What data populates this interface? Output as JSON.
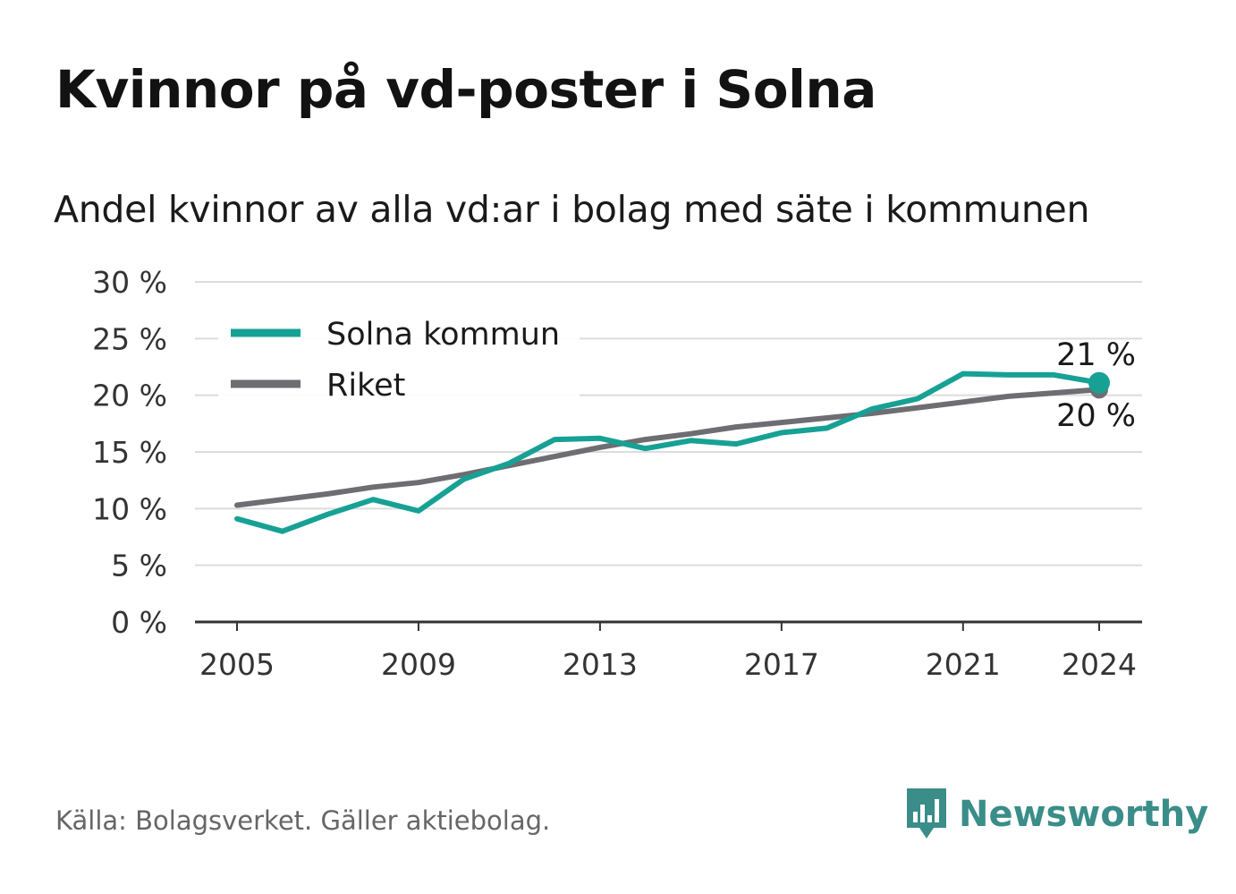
{
  "title": "Kvinnor på vd-poster i Solna",
  "subtitle": "Andel kvinnor av alla vd:ar i bolag med säte i kommunen",
  "source": "Källa: Bolagsverket. Gäller aktiebolag.",
  "brand": "Newsworthy",
  "colors": {
    "solna": "#17a195",
    "riket": "#6d6d72",
    "grid": "#dcdcdc",
    "axis": "#333333",
    "brand": "#3a8d88"
  },
  "chart_data": {
    "type": "line",
    "x": [
      2005,
      2006,
      2007,
      2008,
      2009,
      2010,
      2011,
      2012,
      2013,
      2014,
      2015,
      2016,
      2017,
      2018,
      2019,
      2020,
      2021,
      2022,
      2023,
      2024
    ],
    "series": [
      {
        "name": "Solna kommun",
        "color": "#17a195",
        "values": [
          9.1,
          8.0,
          9.5,
          10.8,
          9.8,
          12.6,
          14.0,
          16.1,
          16.2,
          15.3,
          16.0,
          15.7,
          16.7,
          17.1,
          18.8,
          19.7,
          21.9,
          21.8,
          21.8,
          21.1
        ]
      },
      {
        "name": "Riket",
        "color": "#6d6d72",
        "values": [
          10.3,
          10.8,
          11.3,
          11.9,
          12.3,
          13.0,
          13.8,
          14.6,
          15.4,
          16.1,
          16.6,
          17.2,
          17.6,
          18.0,
          18.4,
          18.9,
          19.4,
          19.9,
          20.2,
          20.5
        ]
      }
    ],
    "xticks": [
      "2005",
      "2009",
      "2013",
      "2017",
      "2021",
      "2024"
    ],
    "yticks": [
      "0 %",
      "5 %",
      "10 %",
      "15 %",
      "20 %",
      "25 %",
      "30 %"
    ],
    "ylim": [
      0,
      30
    ],
    "grid": true,
    "legend": "top-left",
    "end_labels": [
      "21 %",
      "20 %"
    ]
  }
}
